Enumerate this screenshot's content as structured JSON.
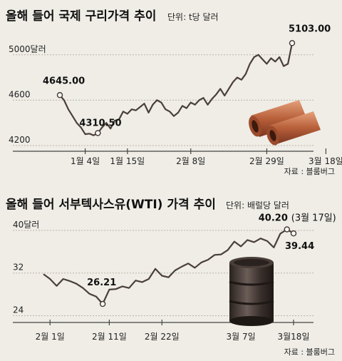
{
  "chart_data": [
    {
      "type": "line",
      "title": "올해 들어 국제 구리가격 추이",
      "unit": "단위: t당 달러",
      "source": "자료 : 블룸버그",
      "ylim": [
        4150,
        5200
      ],
      "y_ticks": [
        {
          "value": 5000,
          "label": "5000달러"
        },
        {
          "value": 4600,
          "label": "4600"
        },
        {
          "value": 4200,
          "label": "4200"
        }
      ],
      "x_ticks": [
        {
          "index": 6,
          "label": "1월 4일"
        },
        {
          "index": 16,
          "label": "1월 15일"
        },
        {
          "index": 31,
          "label": "2월 8일"
        },
        {
          "index": 49,
          "label": "2월 29일"
        },
        {
          "index": 63,
          "label": "3월 18일"
        }
      ],
      "values": [
        4645.0,
        4600,
        4520,
        4460,
        4400,
        4360,
        4300,
        4305,
        4290,
        4310.5,
        4360,
        4400,
        4350,
        4420,
        4430,
        4500,
        4480,
        4520,
        4510,
        4540,
        4570,
        4490,
        4560,
        4600,
        4580,
        4520,
        4500,
        4460,
        4490,
        4550,
        4530,
        4580,
        4560,
        4600,
        4620,
        4560,
        4610,
        4650,
        4700,
        4640,
        4700,
        4760,
        4800,
        4780,
        4830,
        4920,
        4980,
        5000,
        4960,
        4920,
        4970,
        4940,
        4980,
        4900,
        4920,
        5103.0
      ],
      "annotations": [
        {
          "index": 0,
          "label": "4645.00"
        },
        {
          "index": 9,
          "label": "4310.50"
        },
        {
          "index": 55,
          "label": "5103.00"
        }
      ]
    },
    {
      "type": "line",
      "title": "올해 들어 서부텍사스유(WTI) 가격 추이",
      "unit": "단위: 배럴당 달러",
      "source": "자료 : 블룸버그",
      "ylim": [
        23,
        42
      ],
      "y_ticks": [
        {
          "value": 40,
          "label": "40달러"
        },
        {
          "value": 32,
          "label": "32"
        },
        {
          "value": 24,
          "label": "24"
        }
      ],
      "x_ticks": [
        {
          "index": 1,
          "label": "2월 1일"
        },
        {
          "index": 10,
          "label": "2월 11일"
        },
        {
          "index": 18,
          "label": "2월 22일"
        },
        {
          "index": 30,
          "label": "3월 7일"
        },
        {
          "index": 38,
          "label": "3월18일"
        }
      ],
      "values": [
        31.8,
        30.9,
        29.6,
        30.9,
        30.5,
        30.0,
        29.2,
        28.1,
        27.6,
        26.21,
        28.9,
        29.0,
        29.5,
        29.2,
        30.6,
        30.3,
        30.9,
        32.8,
        31.5,
        31.2,
        32.5,
        33.2,
        33.8,
        33.0,
        34.0,
        34.5,
        35.4,
        35.5,
        36.3,
        37.9,
        37.0,
        38.2,
        37.8,
        38.5,
        38.0,
        36.8,
        39.4,
        40.2,
        39.44
      ],
      "annotations": [
        {
          "index": 9,
          "label": "26.21"
        },
        {
          "index": 37,
          "label": "40.20",
          "note": "(3월 17일)"
        },
        {
          "index": 38,
          "label": "39.44"
        }
      ]
    }
  ]
}
